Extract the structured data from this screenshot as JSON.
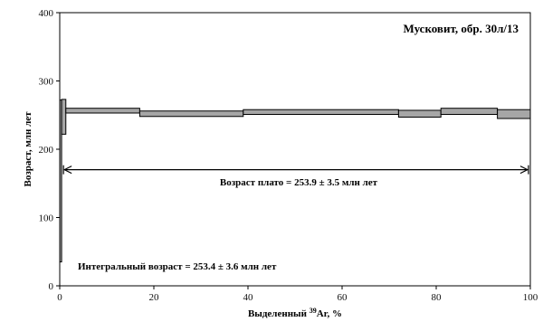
{
  "chart_data": {
    "type": "step-spectrum",
    "title": "Мусковит, обр. 30л/13",
    "xlabel_prefix": "Выделенный ",
    "xlabel_sup": "39",
    "xlabel_suffix": "Ar, %",
    "ylabel": "Возраст, млн лет",
    "xlim": [
      0,
      100
    ],
    "ylim": [
      0,
      400
    ],
    "xticks": [
      "0",
      "20",
      "40",
      "60",
      "80",
      "100"
    ],
    "yticks": [
      "0",
      "100",
      "200",
      "300",
      "400"
    ],
    "grid": false,
    "steps": [
      {
        "x0": 0.0,
        "x1": 0.4,
        "low": 35,
        "high": 272
      },
      {
        "x0": 0.4,
        "x1": 1.3,
        "low": 222,
        "high": 273
      },
      {
        "x0": 1.3,
        "x1": 17.0,
        "low": 253,
        "high": 260
      },
      {
        "x0": 17.0,
        "x1": 39.0,
        "low": 248,
        "high": 256
      },
      {
        "x0": 39.0,
        "x1": 72.0,
        "low": 251,
        "high": 258
      },
      {
        "x0": 72.0,
        "x1": 81.0,
        "low": 247,
        "high": 257
      },
      {
        "x0": 81.0,
        "x1": 93.0,
        "low": 251,
        "high": 260
      },
      {
        "x0": 93.0,
        "x1": 100.0,
        "low": 245,
        "high": 258
      }
    ],
    "plateau": {
      "x_start": 0.8,
      "x_end": 99.6,
      "y": 170,
      "label": "Возраст плато = 253.9 ± 3.5 млн лет"
    },
    "integral_label": "Интегральный возраст = 253.4 ± 3.6 млн лет",
    "colors": {
      "fill": "#a6a6a6",
      "stroke": "#000000"
    }
  }
}
